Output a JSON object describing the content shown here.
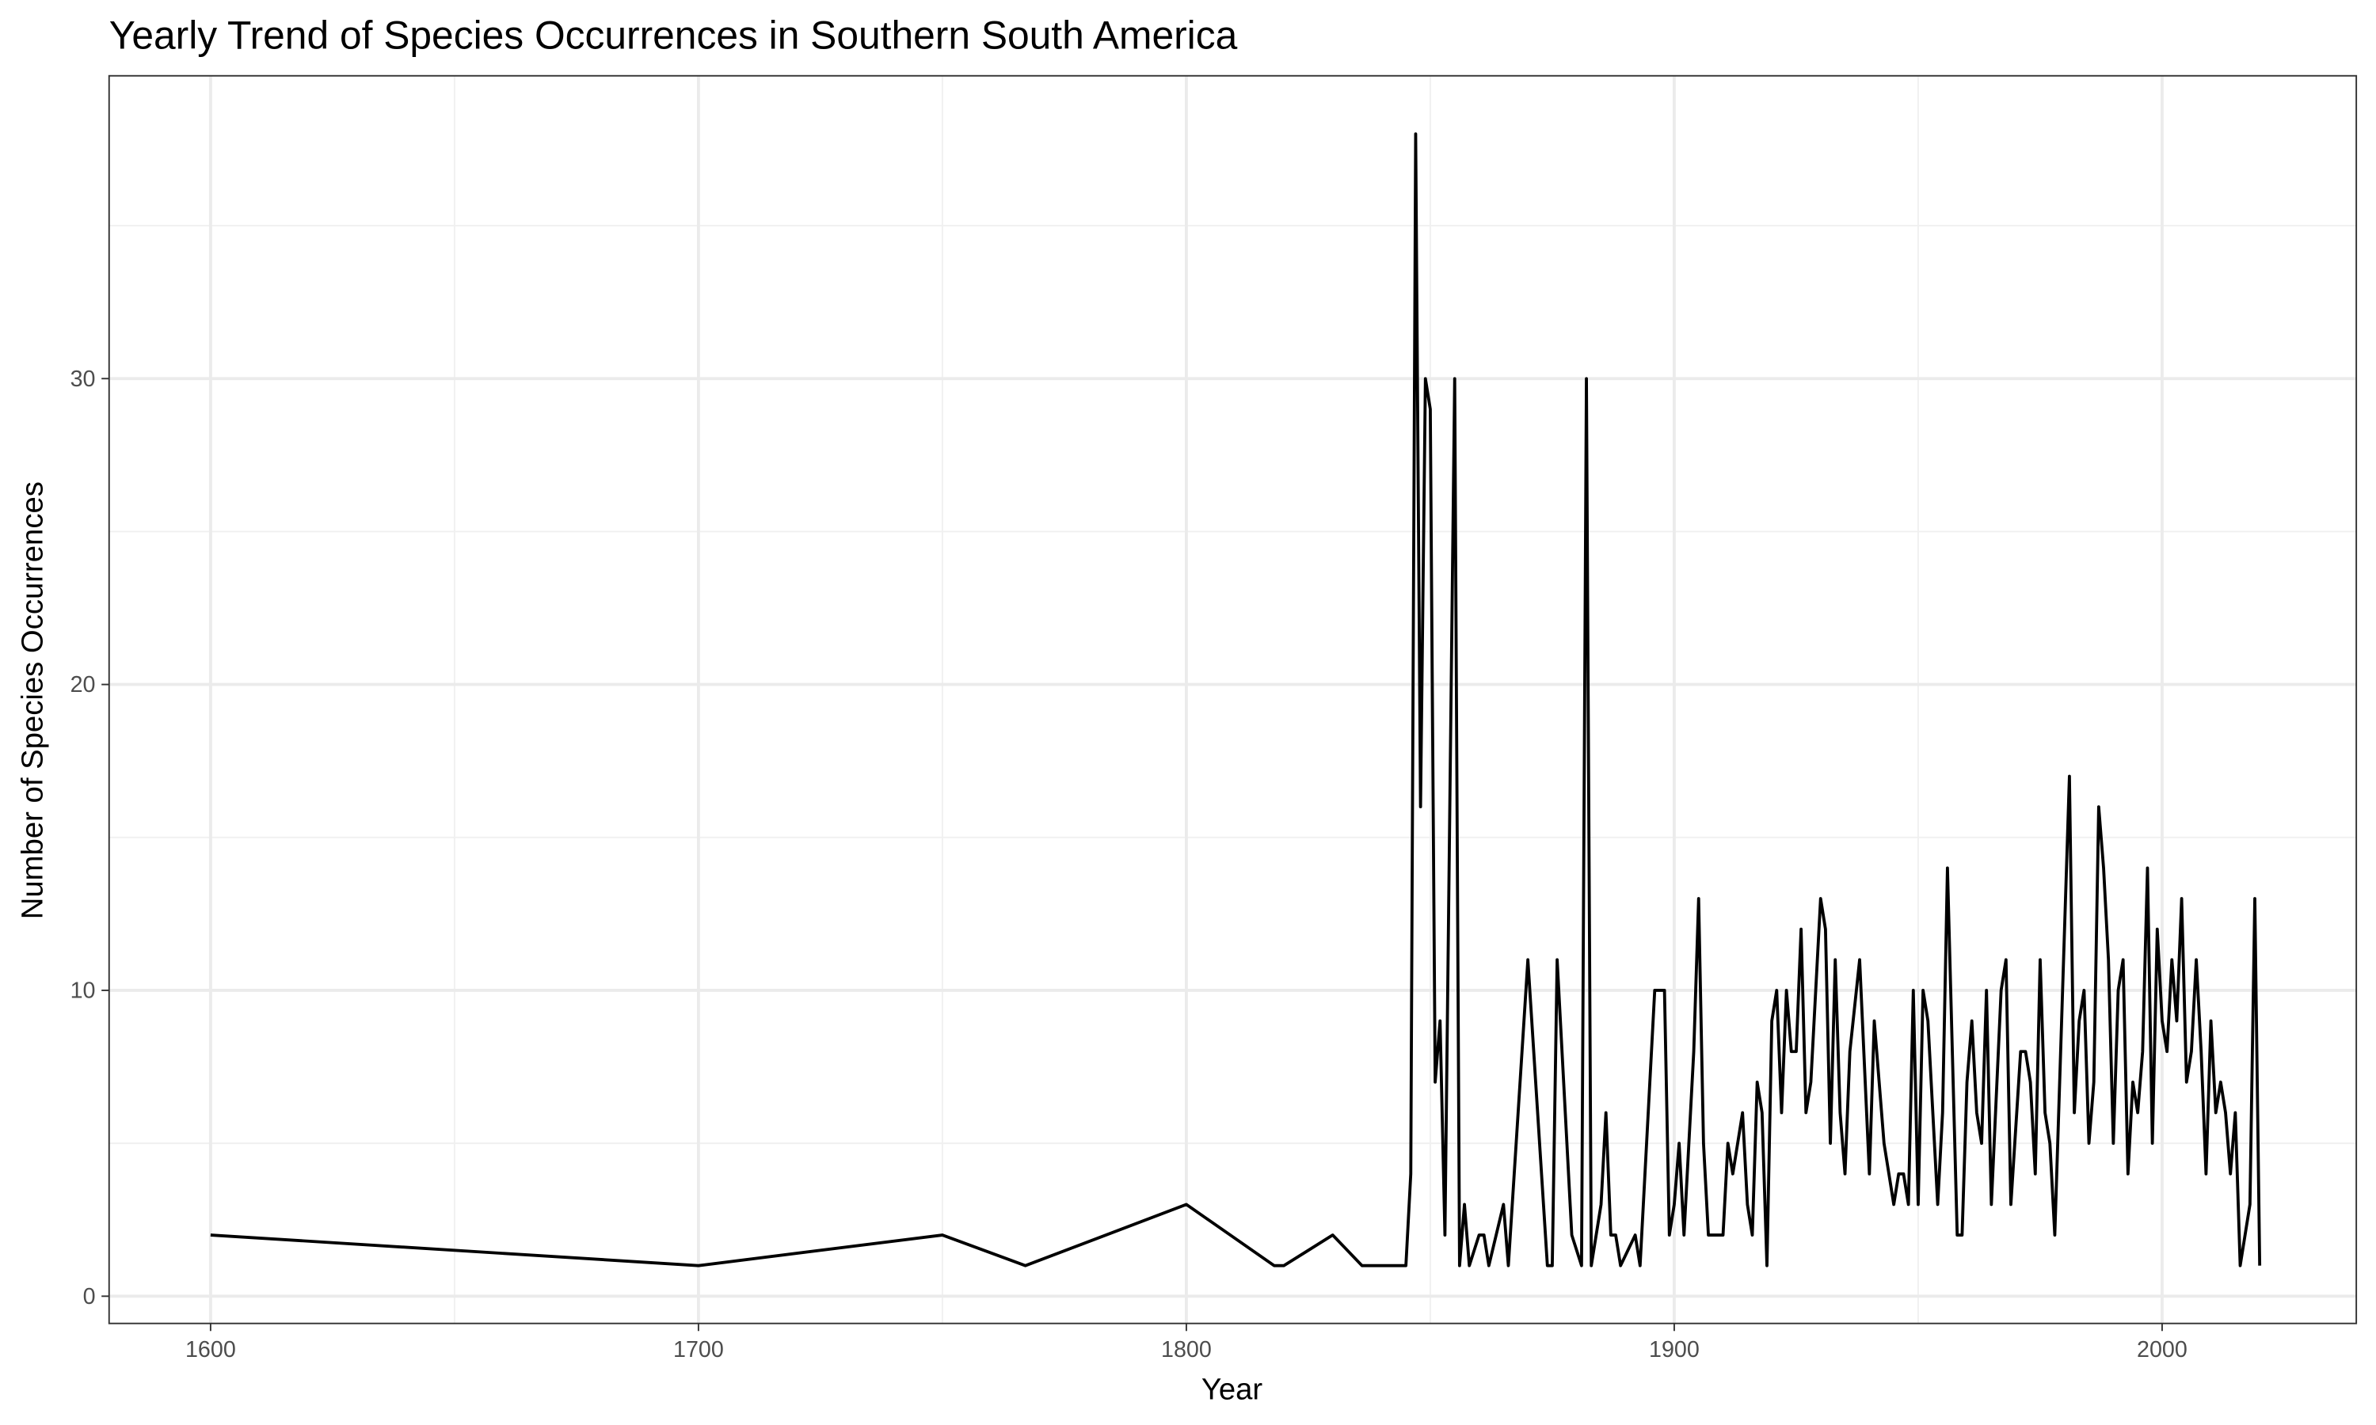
{
  "chart_data": {
    "type": "line",
    "title": "Yearly Trend of Species Occurrences in Southern South America",
    "xlabel": "Year",
    "ylabel": "Number of Species Occurrences",
    "x": [
      1600,
      1700,
      1750,
      1767,
      1800,
      1818,
      1820,
      1830,
      1836,
      1845,
      1846,
      1847,
      1848,
      1849,
      1850,
      1851,
      1852,
      1853,
      1855,
      1856,
      1857,
      1858,
      1860,
      1861,
      1862,
      1865,
      1866,
      1870,
      1874,
      1875,
      1876,
      1879,
      1881,
      1882,
      1883,
      1885,
      1886,
      1887,
      1888,
      1889,
      1892,
      1893,
      1896,
      1898,
      1899,
      1900,
      1901,
      1902,
      1904,
      1905,
      1906,
      1907,
      1910,
      1911,
      1912,
      1914,
      1915,
      1916,
      1917,
      1918,
      1919,
      1920,
      1921,
      1922,
      1923,
      1924,
      1925,
      1926,
      1927,
      1928,
      1930,
      1931,
      1932,
      1933,
      1934,
      1935,
      1936,
      1938,
      1940,
      1941,
      1942,
      1943,
      1945,
      1946,
      1947,
      1948,
      1949,
      1950,
      1951,
      1952,
      1954,
      1955,
      1956,
      1958,
      1959,
      1960,
      1961,
      1962,
      1963,
      1964,
      1965,
      1967,
      1968,
      1969,
      1971,
      1972,
      1973,
      1974,
      1975,
      1976,
      1977,
      1978,
      1981,
      1982,
      1983,
      1984,
      1985,
      1986,
      1987,
      1988,
      1989,
      1990,
      1991,
      1992,
      1993,
      1994,
      1995,
      1996,
      1997,
      1998,
      1999,
      2000,
      2001,
      2002,
      2003,
      2004,
      2005,
      2006,
      2007,
      2008,
      2009,
      2010,
      2011,
      2012,
      2013,
      2014,
      2015,
      2016,
      2018,
      2019,
      2020
    ],
    "series": [
      {
        "name": "Occurrences",
        "color": "#000000",
        "values": [
          2,
          1,
          2,
          1,
          3,
          1,
          1,
          2,
          1,
          1,
          4,
          38,
          16,
          30,
          29,
          7,
          9,
          2,
          30,
          1,
          3,
          1,
          2,
          2,
          1,
          3,
          1,
          11,
          1,
          1,
          11,
          2,
          1,
          30,
          1,
          3,
          6,
          2,
          2,
          1,
          2,
          1,
          10,
          10,
          2,
          3,
          5,
          2,
          8,
          13,
          5,
          2,
          2,
          5,
          4,
          6,
          3,
          2,
          7,
          6,
          1,
          9,
          10,
          6,
          10,
          8,
          8,
          12,
          6,
          7,
          13,
          12,
          5,
          11,
          6,
          4,
          8,
          11,
          4,
          9,
          7,
          5,
          3,
          4,
          4,
          3,
          10,
          3,
          10,
          9,
          3,
          6,
          14,
          2,
          2,
          7,
          9,
          6,
          5,
          10,
          3,
          10,
          11,
          3,
          8,
          8,
          7,
          4,
          11,
          6,
          5,
          2,
          17,
          6,
          9,
          10,
          5,
          7,
          16,
          14,
          11,
          5,
          10,
          11,
          4,
          7,
          6,
          8,
          14,
          5,
          12,
          9,
          8,
          11,
          9,
          13,
          7,
          8,
          11,
          8,
          4,
          9,
          6,
          7,
          6,
          4,
          6,
          1,
          3,
          13,
          1
        ]
      }
    ],
    "xlim": [
      1579.2,
      2039.8
    ],
    "xticks": [
      1600,
      1700,
      1800,
      1900,
      2000
    ],
    "xminor": [
      1650,
      1750,
      1850,
      1950
    ],
    "ylim": [
      -0.89,
      39.9
    ],
    "yticks": [
      0,
      10,
      20,
      30
    ],
    "yminor": [
      5,
      15,
      25,
      35
    ],
    "grid": true
  }
}
